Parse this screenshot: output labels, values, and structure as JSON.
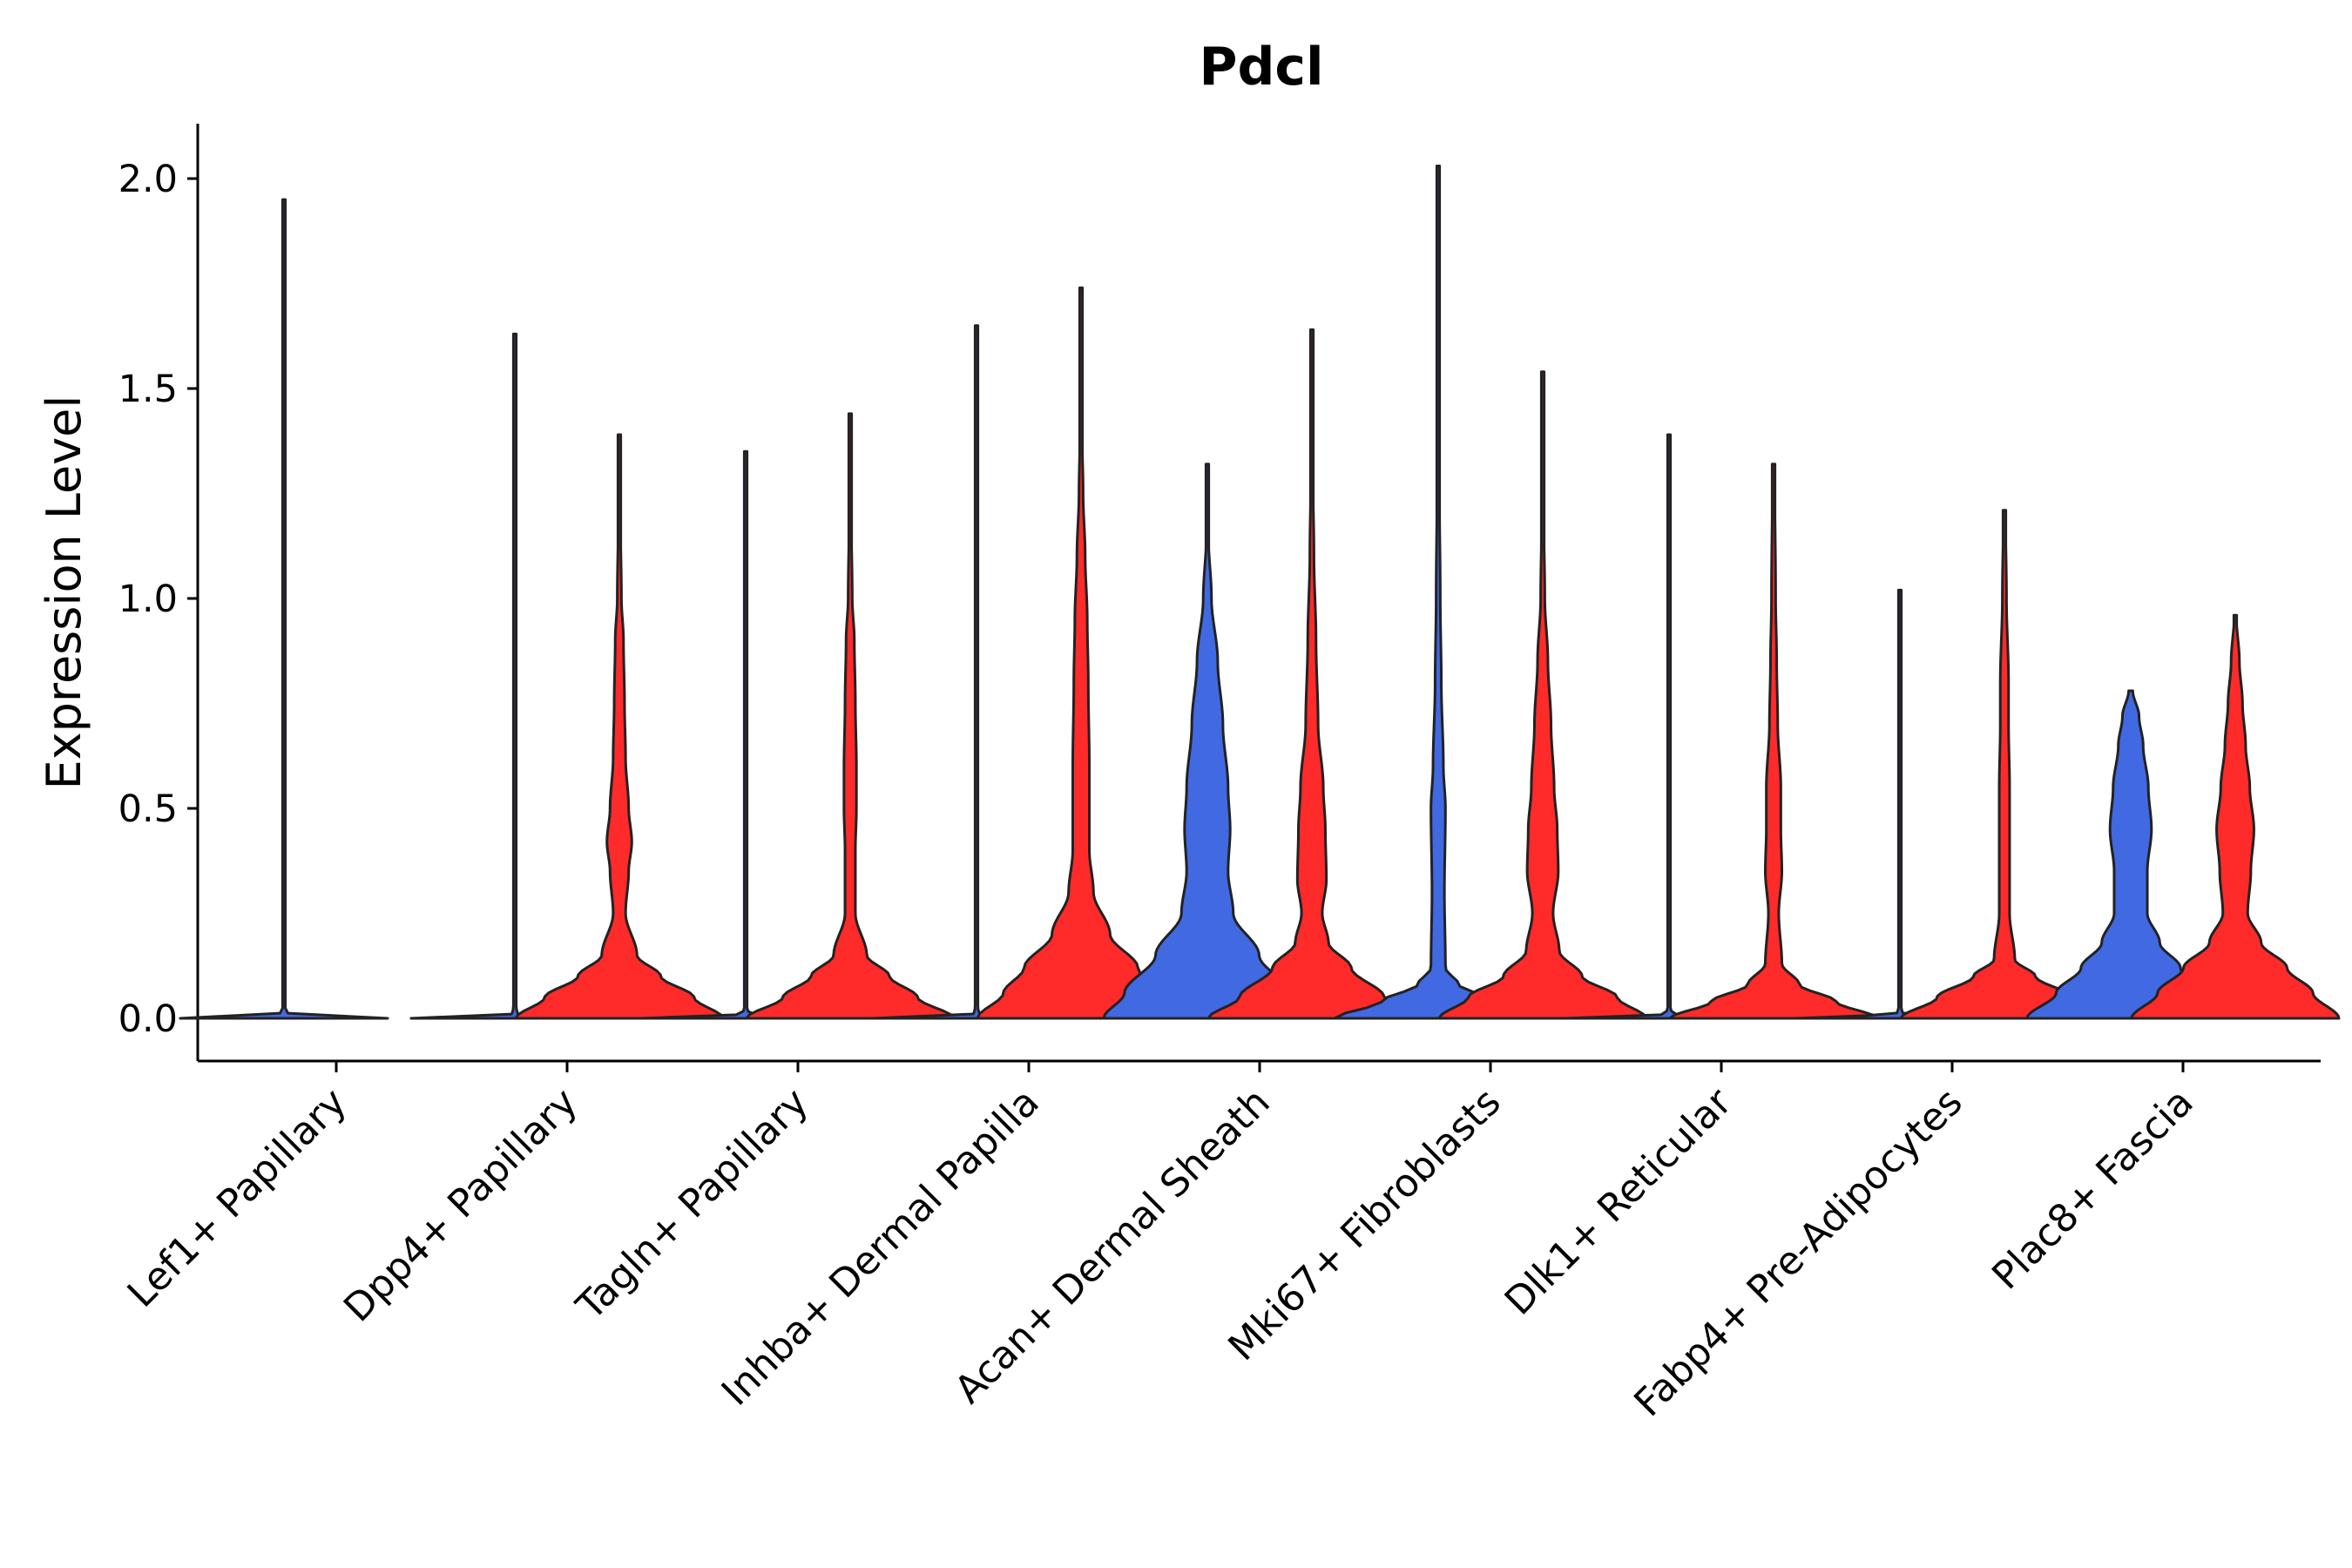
{
  "chart_data": {
    "type": "violin",
    "title": "Pdcl",
    "xlabel": "",
    "ylabel": "Expression Level",
    "ylim": [
      -0.1,
      2.13
    ],
    "yticks": [
      0.0,
      0.5,
      1.0,
      1.5,
      2.0
    ],
    "ytick_labels": [
      "0.0",
      "0.5",
      "1.0",
      "1.5",
      "2.0"
    ],
    "grid": false,
    "legend": "none",
    "categories": [
      "Lef1+ Papillary",
      "Dpp4+ Papillary",
      "Tagln+ Papillary",
      "Inhba+ Dermal Papilla",
      "Acan+ Dermal Sheath",
      "Mki67+ Fibroblasts",
      "Dlk1+ Reticular",
      "Fabp4+ Pre-Adipocytes",
      "Plac8+ Fascia"
    ],
    "groups": [
      {
        "name": "group1",
        "color": "#4169E1"
      },
      {
        "name": "group2",
        "color": "#FF2A2A"
      }
    ],
    "violins": [
      {
        "category": "Lef1+ Papillary",
        "group": "group1",
        "max": 1.95,
        "profile": [
          [
            0,
            1.0
          ],
          [
            0.01,
            0.04
          ],
          [
            0.03,
            0.005
          ],
          [
            1.95,
            0.002
          ]
        ]
      },
      {
        "category": "Lef1+ Papillary",
        "group": "group2",
        "max": 0.0,
        "profile": []
      },
      {
        "category": "Dpp4+ Papillary",
        "group": "group1",
        "max": 1.63,
        "profile": [
          [
            0,
            1.0
          ],
          [
            0.01,
            0.03
          ],
          [
            0.03,
            0.005
          ],
          [
            1.63,
            0.002
          ]
        ]
      },
      {
        "category": "Dpp4+ Papillary",
        "group": "group2",
        "max": 1.39,
        "profile": [
          [
            0,
            1.0
          ],
          [
            0.05,
            0.72
          ],
          [
            0.1,
            0.4
          ],
          [
            0.15,
            0.17
          ],
          [
            0.25,
            0.06
          ],
          [
            0.35,
            0.09
          ],
          [
            0.42,
            0.12
          ],
          [
            0.5,
            0.09
          ],
          [
            0.62,
            0.06
          ],
          [
            0.75,
            0.05
          ],
          [
            0.9,
            0.04
          ],
          [
            1.0,
            0.02
          ],
          [
            1.2,
            0.01
          ],
          [
            1.39,
            0.01
          ]
        ]
      },
      {
        "category": "Tagln+ Papillary",
        "group": "group1",
        "max": 1.35,
        "profile": [
          [
            0,
            1.0
          ],
          [
            0.01,
            0.03
          ],
          [
            0.03,
            0.005
          ],
          [
            1.35,
            0.002
          ]
        ]
      },
      {
        "category": "Tagln+ Papillary",
        "group": "group2",
        "max": 1.44,
        "profile": [
          [
            0,
            1.0
          ],
          [
            0.05,
            0.65
          ],
          [
            0.1,
            0.38
          ],
          [
            0.15,
            0.16
          ],
          [
            0.25,
            0.05
          ],
          [
            0.4,
            0.05
          ],
          [
            0.5,
            0.06
          ],
          [
            0.6,
            0.06
          ],
          [
            0.75,
            0.05
          ],
          [
            0.9,
            0.04
          ],
          [
            1.0,
            0.02
          ],
          [
            1.2,
            0.01
          ],
          [
            1.44,
            0.01
          ]
        ]
      },
      {
        "category": "Inhba+ Dermal Papilla",
        "group": "group1",
        "max": 1.65,
        "profile": [
          [
            0,
            1.0
          ],
          [
            0.01,
            0.03
          ],
          [
            0.03,
            0.005
          ],
          [
            1.65,
            0.002
          ]
        ]
      },
      {
        "category": "Inhba+ Dermal Papilla",
        "group": "group2",
        "max": 1.74,
        "profile": [
          [
            0,
            1.0
          ],
          [
            0.06,
            0.75
          ],
          [
            0.12,
            0.55
          ],
          [
            0.2,
            0.28
          ],
          [
            0.3,
            0.12
          ],
          [
            0.4,
            0.08
          ],
          [
            0.6,
            0.08
          ],
          [
            0.8,
            0.07
          ],
          [
            0.95,
            0.06
          ],
          [
            1.1,
            0.04
          ],
          [
            1.25,
            0.02
          ],
          [
            1.4,
            0.01
          ],
          [
            1.74,
            0.01
          ]
        ]
      },
      {
        "category": "Acan+ Dermal Sheath",
        "group": "group1",
        "max": 1.32,
        "profile": [
          [
            0,
            1.0
          ],
          [
            0.06,
            0.8
          ],
          [
            0.15,
            0.5
          ],
          [
            0.25,
            0.25
          ],
          [
            0.35,
            0.2
          ],
          [
            0.45,
            0.22
          ],
          [
            0.55,
            0.2
          ],
          [
            0.7,
            0.15
          ],
          [
            0.85,
            0.1
          ],
          [
            1.0,
            0.04
          ],
          [
            1.15,
            0.01
          ],
          [
            1.32,
            0.01
          ]
        ]
      },
      {
        "category": "Acan+ Dermal Sheath",
        "group": "group2",
        "max": 1.64,
        "profile": [
          [
            0,
            1.0
          ],
          [
            0.05,
            0.7
          ],
          [
            0.12,
            0.38
          ],
          [
            0.18,
            0.16
          ],
          [
            0.25,
            0.1
          ],
          [
            0.33,
            0.14
          ],
          [
            0.45,
            0.13
          ],
          [
            0.55,
            0.11
          ],
          [
            0.7,
            0.06
          ],
          [
            0.9,
            0.04
          ],
          [
            1.1,
            0.02
          ],
          [
            1.3,
            0.01
          ],
          [
            1.64,
            0.01
          ]
        ]
      },
      {
        "category": "Mki67+ Fibroblasts",
        "group": "group1",
        "max": 2.03,
        "profile": [
          [
            0,
            1.0
          ],
          [
            0.04,
            0.55
          ],
          [
            0.08,
            0.2
          ],
          [
            0.12,
            0.07
          ],
          [
            0.3,
            0.06
          ],
          [
            0.5,
            0.07
          ],
          [
            0.6,
            0.05
          ],
          [
            0.8,
            0.03
          ],
          [
            1.0,
            0.02
          ],
          [
            1.3,
            0.01
          ],
          [
            2.03,
            0.005
          ]
        ]
      },
      {
        "category": "Mki67+ Fibroblasts",
        "group": "group2",
        "max": 1.54,
        "profile": [
          [
            0,
            1.0
          ],
          [
            0.05,
            0.72
          ],
          [
            0.1,
            0.38
          ],
          [
            0.16,
            0.16
          ],
          [
            0.25,
            0.1
          ],
          [
            0.35,
            0.15
          ],
          [
            0.45,
            0.14
          ],
          [
            0.55,
            0.11
          ],
          [
            0.7,
            0.08
          ],
          [
            0.85,
            0.05
          ],
          [
            1.0,
            0.02
          ],
          [
            1.2,
            0.01
          ],
          [
            1.54,
            0.01
          ]
        ]
      },
      {
        "category": "Dlk1+ Reticular",
        "group": "group1",
        "max": 1.39,
        "profile": [
          [
            0,
            1.0
          ],
          [
            0.01,
            0.03
          ],
          [
            0.03,
            0.005
          ],
          [
            1.39,
            0.002
          ]
        ]
      },
      {
        "category": "Dlk1+ Reticular",
        "group": "group2",
        "max": 1.32,
        "profile": [
          [
            0,
            1.0
          ],
          [
            0.04,
            0.6
          ],
          [
            0.08,
            0.25
          ],
          [
            0.13,
            0.08
          ],
          [
            0.25,
            0.05
          ],
          [
            0.35,
            0.08
          ],
          [
            0.45,
            0.07
          ],
          [
            0.55,
            0.07
          ],
          [
            0.7,
            0.04
          ],
          [
            0.85,
            0.03
          ],
          [
            1.0,
            0.02
          ],
          [
            1.32,
            0.01
          ]
        ]
      },
      {
        "category": "Fabp4+ Pre-Adipocytes",
        "group": "group1",
        "max": 1.02,
        "profile": [
          [
            0,
            1.0
          ],
          [
            0.01,
            0.03
          ],
          [
            0.03,
            0.005
          ],
          [
            1.02,
            0.002
          ]
        ]
      },
      {
        "category": "Fabp4+ Pre-Adipocytes",
        "group": "group2",
        "max": 1.21,
        "profile": [
          [
            0,
            1.0
          ],
          [
            0.05,
            0.65
          ],
          [
            0.1,
            0.3
          ],
          [
            0.14,
            0.1
          ],
          [
            0.25,
            0.05
          ],
          [
            0.4,
            0.05
          ],
          [
            0.55,
            0.05
          ],
          [
            0.7,
            0.04
          ],
          [
            0.8,
            0.04
          ],
          [
            1.0,
            0.02
          ],
          [
            1.21,
            0.01
          ]
        ]
      },
      {
        "category": "Plac8+ Fascia",
        "group": "group1",
        "max": 0.78,
        "profile": [
          [
            0,
            1.0
          ],
          [
            0.06,
            0.72
          ],
          [
            0.12,
            0.48
          ],
          [
            0.18,
            0.28
          ],
          [
            0.25,
            0.16
          ],
          [
            0.35,
            0.16
          ],
          [
            0.45,
            0.2
          ],
          [
            0.55,
            0.17
          ],
          [
            0.65,
            0.12
          ],
          [
            0.72,
            0.08
          ],
          [
            0.78,
            0.02
          ]
        ]
      },
      {
        "category": "Plac8+ Fascia",
        "group": "group2",
        "max": 0.96,
        "profile": [
          [
            0,
            1.0
          ],
          [
            0.06,
            0.75
          ],
          [
            0.12,
            0.5
          ],
          [
            0.18,
            0.25
          ],
          [
            0.25,
            0.12
          ],
          [
            0.35,
            0.15
          ],
          [
            0.45,
            0.18
          ],
          [
            0.55,
            0.14
          ],
          [
            0.65,
            0.1
          ],
          [
            0.75,
            0.07
          ],
          [
            0.85,
            0.04
          ],
          [
            0.96,
            0.01
          ]
        ]
      }
    ]
  }
}
